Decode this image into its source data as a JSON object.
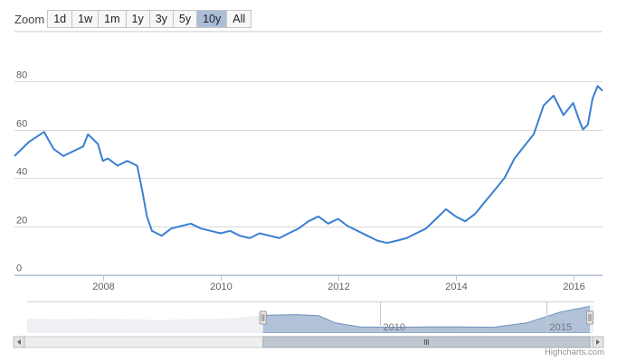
{
  "zoom": {
    "label": "Zoom",
    "buttons": [
      "1d",
      "1w",
      "1m",
      "1y",
      "3y",
      "5y",
      "10y",
      "All"
    ],
    "selected": "10y"
  },
  "credits": "Highcharts.com",
  "colors": {
    "line": "#3b7fd2",
    "navigator_fill": "#b2c2d9",
    "navigator_outside": "#eef0f4",
    "grid": "#d8d8d8"
  },
  "chart_data": {
    "type": "line",
    "title": "",
    "xlabel": "",
    "ylabel": "",
    "x_ticks": [
      "2008",
      "2010",
      "2012",
      "2014",
      "2016"
    ],
    "y_ticks": [
      "0",
      "20",
      "40",
      "60",
      "80"
    ],
    "xlim": [
      "2006-07-01",
      "2016-07-01"
    ],
    "ylim": [
      0,
      80
    ],
    "grid": true,
    "series": [
      {
        "x": [
          "2006-07-01",
          "2006-10-01",
          "2007-01-01",
          "2007-03-01",
          "2007-05-01",
          "2007-07-01",
          "2007-09-01",
          "2007-10-01",
          "2007-12-01",
          "2008-01-01",
          "2008-02-01",
          "2008-04-01",
          "2008-06-01",
          "2008-08-01",
          "2008-09-01",
          "2008-10-01",
          "2008-11-01",
          "2008-12-01",
          "2009-01-01",
          "2009-03-01",
          "2009-05-01",
          "2009-07-01",
          "2009-09-01",
          "2009-11-01",
          "2010-01-01",
          "2010-03-01",
          "2010-05-01",
          "2010-07-01",
          "2010-09-01",
          "2010-11-01",
          "2011-01-01",
          "2011-03-01",
          "2011-05-01",
          "2011-07-01",
          "2011-09-01",
          "2011-11-01",
          "2012-01-01",
          "2012-03-01",
          "2012-05-01",
          "2012-07-01",
          "2012-09-01",
          "2012-11-01",
          "2013-01-01",
          "2013-03-01",
          "2013-05-01",
          "2013-07-01",
          "2013-09-01",
          "2013-11-01",
          "2014-01-01",
          "2014-03-01",
          "2014-05-01",
          "2014-07-01",
          "2014-09-01",
          "2014-11-01",
          "2015-01-01",
          "2015-03-01",
          "2015-05-01",
          "2015-07-01",
          "2015-09-01",
          "2015-11-01",
          "2016-01-01",
          "2016-02-01",
          "2016-03-01",
          "2016-04-01",
          "2016-05-01",
          "2016-06-01",
          "2016-07-01"
        ],
        "y": [
          49,
          55,
          59,
          52,
          49,
          51,
          53,
          58,
          54,
          47,
          48,
          45,
          47,
          45,
          35,
          24,
          18,
          17,
          16,
          19,
          20,
          21,
          19,
          18,
          17,
          18,
          16,
          15,
          17,
          16,
          15,
          17,
          19,
          22,
          24,
          21,
          23,
          20,
          18,
          16,
          14,
          13,
          14,
          15,
          17,
          19,
          23,
          27,
          24,
          22,
          25,
          30,
          35,
          40,
          48,
          53,
          58,
          70,
          74,
          66,
          71,
          65,
          60,
          62,
          73,
          78,
          76
        ]
      }
    ]
  },
  "navigator": {
    "ticks": [
      "2010",
      "2015"
    ],
    "x": [
      "1999-06-01",
      "2000-06-01",
      "2001-06-01",
      "2002-06-01",
      "2003-06-01",
      "2004-06-01",
      "2005-06-01",
      "2006-07-01",
      "2007-07-01",
      "2008-03-01",
      "2008-09-01",
      "2009-06-01",
      "2010-06-01",
      "2011-06-01",
      "2012-06-01",
      "2013-06-01",
      "2014-06-01",
      "2015-06-01",
      "2016-06-01"
    ],
    "y": [
      40,
      38,
      40,
      38,
      36,
      39,
      40,
      49,
      51,
      48,
      28,
      17,
      16,
      17,
      17,
      16,
      28,
      58,
      76
    ]
  }
}
